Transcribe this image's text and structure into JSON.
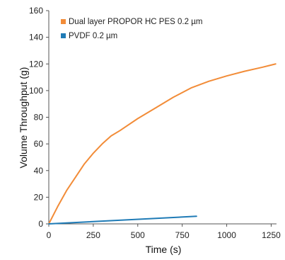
{
  "chart_data": {
    "type": "line",
    "title": "",
    "xlabel": "Time (s)",
    "ylabel": "Volume Throughput (g)",
    "xlim": [
      0,
      1280
    ],
    "ylim": [
      0,
      160
    ],
    "xticks": [
      0,
      250,
      500,
      750,
      1000,
      1250
    ],
    "yticks": [
      0,
      20,
      40,
      60,
      80,
      100,
      120,
      140,
      160
    ],
    "grid": false,
    "legend_position": "top-left",
    "series": [
      {
        "name": "Dual layer PROPOR HC PES 0.2 µm",
        "color": "#F28C38",
        "x": [
          0,
          50,
          100,
          150,
          200,
          250,
          300,
          350,
          400,
          500,
          600,
          700,
          800,
          900,
          1000,
          1100,
          1200,
          1275
        ],
        "y": [
          0,
          13,
          25,
          35,
          45,
          53,
          60,
          66,
          70,
          79,
          87,
          95,
          102,
          107,
          111,
          114.5,
          117.5,
          120
        ]
      },
      {
        "name": "PVDF 0.2 µm",
        "color": "#1F7BB6",
        "x": [
          0,
          830
        ],
        "y": [
          0,
          5.7
        ]
      }
    ]
  }
}
